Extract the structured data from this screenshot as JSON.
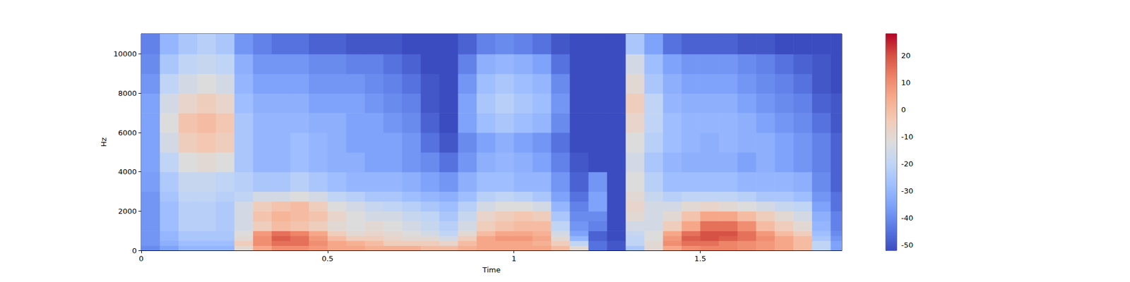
{
  "chart_data": {
    "type": "heatmap",
    "xlabel": "Time",
    "ylabel": "Hz",
    "xlim": [
      0,
      1.88
    ],
    "ylim": [
      0,
      11025
    ],
    "xticks": [
      0,
      0.5,
      1,
      1.5
    ],
    "yticks": [
      0,
      2000,
      4000,
      6000,
      8000,
      10000
    ],
    "x_edges": [
      0,
      0.05,
      0.1,
      0.15,
      0.2,
      0.25,
      0.3,
      0.35,
      0.4,
      0.45,
      0.5,
      0.55,
      0.6,
      0.65,
      0.7,
      0.75,
      0.8,
      0.85,
      0.9,
      0.95,
      1.0,
      1.05,
      1.1,
      1.15,
      1.2,
      1.25,
      1.3,
      1.35,
      1.4,
      1.45,
      1.5,
      1.55,
      1.6,
      1.65,
      1.7,
      1.75,
      1.8,
      1.85,
      1.88
    ],
    "y_edges": [
      0,
      250,
      500,
      750,
      1000,
      1500,
      2000,
      2500,
      3000,
      4000,
      5000,
      6000,
      7000,
      8000,
      9000,
      10000,
      11025
    ],
    "cells": [
      [
        -40,
        -35,
        -30,
        -30,
        -30,
        -10,
        5,
        10,
        10,
        8,
        5,
        5,
        3,
        3,
        3,
        0,
        0,
        3,
        5,
        5,
        5,
        5,
        0,
        -10,
        -45,
        -50,
        -25,
        -10,
        5,
        10,
        12,
        12,
        10,
        8,
        5,
        0,
        -20,
        -35
      ],
      [
        -38,
        -32,
        -28,
        -28,
        -28,
        -5,
        10,
        15,
        15,
        10,
        5,
        3,
        0,
        -5,
        -5,
        -5,
        -8,
        0,
        5,
        5,
        5,
        3,
        -5,
        -20,
        -45,
        -50,
        -20,
        -10,
        10,
        15,
        15,
        12,
        10,
        8,
        5,
        0,
        -20,
        -35
      ],
      [
        -38,
        -30,
        -25,
        -25,
        -25,
        -10,
        10,
        18,
        15,
        8,
        0,
        -5,
        -5,
        -8,
        -10,
        -10,
        -15,
        -5,
        5,
        8,
        8,
        5,
        -10,
        -30,
        -48,
        -52,
        -20,
        -12,
        8,
        18,
        20,
        18,
        15,
        10,
        5,
        0,
        -25,
        -38
      ],
      [
        -38,
        -30,
        -25,
        -25,
        -25,
        -12,
        8,
        15,
        12,
        5,
        -5,
        -10,
        -8,
        -10,
        -12,
        -15,
        -20,
        -10,
        0,
        5,
        5,
        3,
        -15,
        -35,
        -48,
        -52,
        -18,
        -12,
        5,
        15,
        20,
        20,
        15,
        8,
        0,
        -5,
        -28,
        -40
      ],
      [
        -38,
        -28,
        -22,
        -22,
        -24,
        -15,
        -5,
        0,
        -2,
        -5,
        -10,
        -12,
        -10,
        -12,
        -15,
        -18,
        -22,
        -15,
        -5,
        -2,
        0,
        0,
        -20,
        -38,
        -42,
        -52,
        -15,
        -15,
        -5,
        5,
        15,
        15,
        10,
        0,
        -5,
        -10,
        -30,
        -42
      ],
      [
        -38,
        -28,
        -22,
        -22,
        -24,
        -15,
        -2,
        2,
        0,
        -2,
        -8,
        -12,
        -15,
        -15,
        -18,
        -20,
        -25,
        -18,
        -8,
        -5,
        -3,
        -5,
        -25,
        -40,
        -40,
        -52,
        -10,
        -15,
        -10,
        -2,
        5,
        5,
        0,
        -5,
        -10,
        -15,
        -32,
        -42
      ],
      [
        -38,
        -28,
        -22,
        -22,
        -24,
        -15,
        -5,
        -2,
        0,
        -5,
        -12,
        -15,
        -18,
        -20,
        -22,
        -25,
        -28,
        -22,
        -15,
        -12,
        -12,
        -15,
        -30,
        -42,
        -35,
        -52,
        -8,
        -15,
        -15,
        -10,
        -8,
        -10,
        -12,
        -15,
        -18,
        -20,
        -35,
        -45
      ],
      [
        -38,
        -26,
        -20,
        -20,
        -22,
        -20,
        -15,
        -15,
        -12,
        -15,
        -20,
        -22,
        -25,
        -25,
        -28,
        -30,
        -32,
        -28,
        -22,
        -20,
        -22,
        -25,
        -35,
        -45,
        -35,
        -52,
        -10,
        -18,
        -22,
        -20,
        -20,
        -20,
        -22,
        -25,
        -25,
        -28,
        -38,
        -45
      ],
      [
        -36,
        -24,
        -18,
        -18,
        -20,
        -22,
        -25,
        -25,
        -22,
        -25,
        -28,
        -30,
        -30,
        -30,
        -32,
        -35,
        -38,
        -32,
        -28,
        -28,
        -30,
        -30,
        -38,
        -48,
        -38,
        -52,
        -12,
        -22,
        -28,
        -28,
        -28,
        -28,
        -30,
        -30,
        -30,
        -32,
        -40,
        -48
      ],
      [
        -35,
        -20,
        -12,
        -10,
        -12,
        -25,
        -30,
        -30,
        -28,
        -30,
        -32,
        -32,
        -35,
        -35,
        -38,
        -40,
        -45,
        -38,
        -32,
        -30,
        -32,
        -35,
        -42,
        -50,
        -52,
        -52,
        -15,
        -25,
        -30,
        -32,
        -32,
        -32,
        -35,
        -32,
        -35,
        -38,
        -42,
        -48
      ],
      [
        -35,
        -15,
        -5,
        -3,
        -5,
        -25,
        -30,
        -30,
        -28,
        -30,
        -32,
        -35,
        -35,
        -35,
        -38,
        -45,
        -50,
        -40,
        -35,
        -32,
        -35,
        -38,
        -45,
        -52,
        -52,
        -52,
        -12,
        -22,
        -28,
        -30,
        -32,
        -30,
        -32,
        -32,
        -35,
        -38,
        -42,
        -48
      ],
      [
        -35,
        -12,
        -2,
        0,
        -3,
        -25,
        -30,
        -30,
        -30,
        -32,
        -32,
        -35,
        -35,
        -38,
        -40,
        -48,
        -52,
        -35,
        -28,
        -25,
        -28,
        -30,
        -40,
        -52,
        -52,
        -52,
        -8,
        -20,
        -28,
        -30,
        -30,
        -30,
        -32,
        -35,
        -38,
        -40,
        -45,
        -50
      ],
      [
        -35,
        -15,
        -8,
        -5,
        -8,
        -28,
        -32,
        -32,
        -32,
        -35,
        -35,
        -35,
        -38,
        -40,
        -42,
        -50,
        -52,
        -35,
        -25,
        -22,
        -25,
        -28,
        -38,
        -52,
        -52,
        -52,
        -5,
        -20,
        -30,
        -32,
        -32,
        -32,
        -35,
        -38,
        -40,
        -42,
        -48,
        -50
      ],
      [
        -38,
        -20,
        -15,
        -12,
        -15,
        -30,
        -35,
        -35,
        -35,
        -38,
        -38,
        -38,
        -40,
        -42,
        -45,
        -50,
        -52,
        -38,
        -28,
        -25,
        -28,
        -30,
        -40,
        -52,
        -52,
        -52,
        -10,
        -25,
        -32,
        -35,
        -35,
        -35,
        -38,
        -40,
        -42,
        -45,
        -50,
        -52
      ],
      [
        -40,
        -25,
        -20,
        -18,
        -20,
        -32,
        -38,
        -38,
        -38,
        -40,
        -40,
        -42,
        -42,
        -45,
        -48,
        -52,
        -52,
        -42,
        -32,
        -30,
        -32,
        -35,
        -45,
        -52,
        -52,
        -52,
        -15,
        -28,
        -35,
        -38,
        -38,
        -38,
        -40,
        -42,
        -45,
        -48,
        -50,
        -52
      ],
      [
        -42,
        -30,
        -25,
        -22,
        -25,
        -38,
        -42,
        -45,
        -45,
        -48,
        -48,
        -50,
        -50,
        -50,
        -52,
        -52,
        -52,
        -48,
        -42,
        -40,
        -42,
        -45,
        -50,
        -52,
        -52,
        -52,
        -25,
        -35,
        -45,
        -48,
        -48,
        -48,
        -50,
        -50,
        -52,
        -52,
        -52,
        -52
      ]
    ],
    "colorbar": {
      "range": [
        -52,
        28
      ],
      "ticks": [
        -50,
        -40,
        -30,
        -20,
        -10,
        0,
        10,
        20
      ]
    }
  }
}
